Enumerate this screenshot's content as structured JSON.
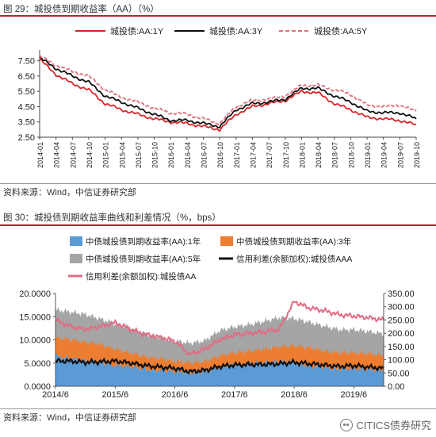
{
  "figure1": {
    "title": "图 29：城投债到期收益率（AA）（%）",
    "source": "资料来源：Wind，中信证券研究部"
  },
  "figure2": {
    "title": "图 30：城投债到期收益率曲线和利差情况（%，bps）",
    "source": "资料来源：Wind，中信证券研究部"
  },
  "watermark": "CITICS债券研究",
  "chart_data": [
    {
      "type": "line",
      "legend_position": "top",
      "grid": false,
      "ylim": [
        2.5,
        8.0
      ],
      "yticks": [
        "7.50",
        "6.50",
        "5.50",
        "4.50",
        "3.50",
        "2.50"
      ],
      "x": [
        "2014-01",
        "2014-04",
        "2014-07",
        "2014-10",
        "2015-01",
        "2015-04",
        "2015-07",
        "2015-10",
        "2016-01",
        "2016-04",
        "2016-07",
        "2016-10",
        "2017-01",
        "2017-04",
        "2017-07",
        "2017-10",
        "2018-01",
        "2018-04",
        "2018-07",
        "2018-10",
        "2019-01",
        "2019-04",
        "2019-07",
        "2019-10"
      ],
      "series": [
        {
          "name": "城投债:AA:1Y",
          "color": "#d7262b",
          "dash": false,
          "values": [
            7.6,
            6.6,
            6.0,
            5.6,
            4.7,
            4.3,
            4.0,
            3.7,
            3.5,
            3.4,
            3.2,
            3.0,
            4.0,
            4.5,
            4.7,
            4.9,
            5.5,
            5.4,
            4.7,
            4.3,
            3.8,
            3.7,
            3.6,
            3.3
          ]
        },
        {
          "name": "城投债:AA:3Y",
          "color": "#111111",
          "dash": false,
          "values": [
            7.7,
            7.0,
            6.5,
            6.1,
            5.2,
            4.8,
            4.4,
            4.0,
            3.6,
            3.6,
            3.4,
            3.2,
            4.3,
            4.7,
            4.8,
            5.0,
            5.7,
            5.7,
            5.2,
            4.8,
            4.2,
            4.1,
            4.1,
            3.7
          ]
        },
        {
          "name": "城投债:AA:5Y",
          "color": "#e06f7e",
          "dash": true,
          "values": [
            7.8,
            7.2,
            6.8,
            6.5,
            5.6,
            5.1,
            4.8,
            4.4,
            4.1,
            4.0,
            3.7,
            3.4,
            4.5,
            4.9,
            5.0,
            5.2,
            5.9,
            5.9,
            5.6,
            5.3,
            4.6,
            4.5,
            4.6,
            4.2
          ]
        }
      ]
    },
    {
      "type": "area",
      "legend_position": "top",
      "grid": false,
      "xticks": [
        "2014/6",
        "2015/6",
        "2016/6",
        "2017/6",
        "2018/6",
        "2019/6"
      ],
      "y_left": {
        "ticks": [
          "20.0000",
          "15.0000",
          "10.0000",
          "5.0000",
          "0.0000"
        ],
        "lim": [
          0,
          20
        ]
      },
      "y_right": {
        "ticks": [
          "350.00",
          "300.00",
          "250.00",
          "200.00",
          "150.00",
          "100.00",
          "50.00",
          "0.00"
        ],
        "lim": [
          0,
          350
        ]
      },
      "x": [
        "2014/6",
        "2014/9",
        "2014/12",
        "2015/3",
        "2015/6",
        "2015/9",
        "2015/12",
        "2016/3",
        "2016/6",
        "2016/9",
        "2016/12",
        "2017/3",
        "2017/6",
        "2017/9",
        "2017/12",
        "2018/3",
        "2018/6",
        "2018/9",
        "2018/12",
        "2019/3",
        "2019/6",
        "2019/9",
        "2019/11"
      ],
      "series": [
        {
          "name": "中债城投债到期收益率(AA):1年",
          "axis": "left",
          "kind": "area",
          "color": "#5b9bd5",
          "values": [
            6.5,
            6.0,
            5.5,
            5.2,
            4.5,
            4.2,
            3.6,
            3.4,
            3.1,
            2.9,
            3.2,
            4.2,
            4.6,
            4.8,
            5.1,
            5.3,
            5.0,
            4.4,
            4.0,
            3.7,
            3.8,
            3.6,
            3.3
          ]
        },
        {
          "name": "中债城投债到期收益率(AA):3年",
          "axis": "left",
          "kind": "area",
          "color": "#ed7d31",
          "values": [
            10.5,
            10.0,
            9.5,
            9.0,
            8.0,
            7.2,
            6.4,
            5.9,
            5.4,
            5.0,
            5.3,
            6.6,
            7.2,
            7.5,
            8.0,
            8.5,
            8.7,
            8.3,
            7.6,
            7.2,
            7.2,
            7.0,
            6.6
          ]
        },
        {
          "name": "中债城投债到期收益率(AA):5年",
          "axis": "left",
          "kind": "area",
          "color": "#a5a5a5",
          "values": [
            16.5,
            16.0,
            15.5,
            14.5,
            13.5,
            12.6,
            11.4,
            10.5,
            9.8,
            9.3,
            9.8,
            12.0,
            12.8,
            13.3,
            14.0,
            14.8,
            14.6,
            13.8,
            13.0,
            12.2,
            12.2,
            11.8,
            11.3
          ]
        },
        {
          "name": "信用利差(余额加权):城投债AAA",
          "axis": "right",
          "kind": "line",
          "color": "#111111",
          "values": [
            95,
            95,
            90,
            92,
            95,
            88,
            78,
            72,
            68,
            55,
            60,
            75,
            80,
            82,
            82,
            85,
            90,
            85,
            80,
            75,
            78,
            72,
            68
          ]
        },
        {
          "name": "信用利差(余额加权):城投债AA",
          "axis": "right",
          "kind": "line",
          "color": "#e36c84",
          "values": [
            250,
            225,
            215,
            225,
            240,
            215,
            195,
            185,
            170,
            120,
            140,
            175,
            195,
            200,
            205,
            215,
            320,
            295,
            285,
            270,
            265,
            258,
            250
          ]
        }
      ]
    }
  ]
}
